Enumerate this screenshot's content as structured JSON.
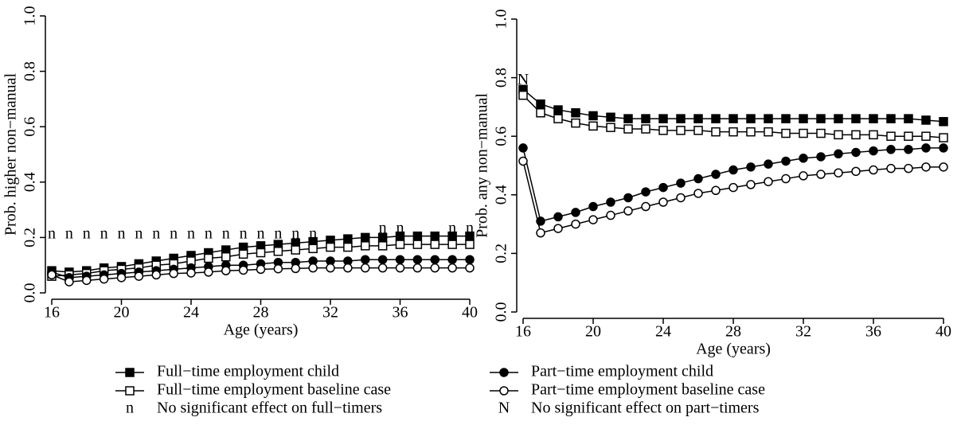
{
  "chart_data": [
    {
      "type": "line",
      "y_label": "Prob. higher non−manual",
      "x_label": "Age (years)",
      "x": [
        16,
        17,
        18,
        19,
        20,
        21,
        22,
        23,
        24,
        25,
        26,
        27,
        28,
        29,
        30,
        31,
        32,
        33,
        34,
        35,
        36,
        37,
        38,
        39,
        40
      ],
      "xlim": [
        16,
        40
      ],
      "xticks": [
        16,
        20,
        24,
        28,
        32,
        36,
        40
      ],
      "ylim": [
        0,
        1
      ],
      "yticks": [
        {
          "value": 0,
          "label": "0.0"
        },
        0.2,
        0.4,
        0.6,
        0.8,
        {
          "value": 1,
          "label": "1.0"
        }
      ],
      "series": [
        {
          "name": "Full−time employment child",
          "color": "#000000",
          "marker": "square",
          "filled": true,
          "values": [
            0.08,
            0.075,
            0.08,
            0.09,
            0.095,
            0.105,
            0.115,
            0.125,
            0.135,
            0.145,
            0.155,
            0.165,
            0.17,
            0.175,
            0.18,
            0.185,
            0.19,
            0.195,
            0.2,
            0.2,
            0.205,
            0.205,
            0.205,
            0.205,
            0.205
          ]
        },
        {
          "name": "Full−time employment baseline case",
          "color": "#000000",
          "marker": "square",
          "filled": false,
          "values": [
            0.06,
            0.065,
            0.07,
            0.08,
            0.085,
            0.09,
            0.1,
            0.105,
            0.115,
            0.125,
            0.13,
            0.14,
            0.145,
            0.15,
            0.155,
            0.16,
            0.165,
            0.165,
            0.17,
            0.17,
            0.175,
            0.175,
            0.175,
            0.175,
            0.175
          ]
        },
        {
          "name": "Part−time employment child",
          "color": "#000000",
          "marker": "circle",
          "filled": true,
          "values": [
            0.075,
            0.055,
            0.06,
            0.065,
            0.07,
            0.075,
            0.08,
            0.085,
            0.09,
            0.095,
            0.1,
            0.1,
            0.105,
            0.11,
            0.11,
            0.115,
            0.115,
            0.115,
            0.12,
            0.12,
            0.12,
            0.12,
            0.12,
            0.12,
            0.12
          ]
        },
        {
          "name": "Part−time employment baseline case",
          "color": "#000000",
          "marker": "circle",
          "filled": false,
          "values": [
            0.065,
            0.04,
            0.045,
            0.05,
            0.055,
            0.06,
            0.065,
            0.07,
            0.072,
            0.075,
            0.08,
            0.082,
            0.085,
            0.087,
            0.088,
            0.09,
            0.09,
            0.09,
            0.09,
            0.09,
            0.09,
            0.09,
            0.09,
            0.09,
            0.09
          ]
        }
      ],
      "annotations": [
        {
          "x": 16,
          "y": 0.21,
          "label": "n"
        },
        {
          "x": 17,
          "y": 0.21,
          "label": "n"
        },
        {
          "x": 18,
          "y": 0.21,
          "label": "n"
        },
        {
          "x": 19,
          "y": 0.21,
          "label": "n"
        },
        {
          "x": 20,
          "y": 0.21,
          "label": "n"
        },
        {
          "x": 21,
          "y": 0.21,
          "label": "n"
        },
        {
          "x": 22,
          "y": 0.21,
          "label": "n"
        },
        {
          "x": 23,
          "y": 0.21,
          "label": "n"
        },
        {
          "x": 24,
          "y": 0.21,
          "label": "n"
        },
        {
          "x": 25,
          "y": 0.21,
          "label": "n"
        },
        {
          "x": 26,
          "y": 0.21,
          "label": "n"
        },
        {
          "x": 27,
          "y": 0.21,
          "label": "n"
        },
        {
          "x": 28,
          "y": 0.21,
          "label": "n"
        },
        {
          "x": 29,
          "y": 0.21,
          "label": "n"
        },
        {
          "x": 30,
          "y": 0.21,
          "label": "n"
        },
        {
          "x": 31,
          "y": 0.21,
          "label": "n"
        },
        {
          "x": 35,
          "y": 0.23,
          "label": "n"
        },
        {
          "x": 36,
          "y": 0.23,
          "label": "n"
        },
        {
          "x": 39,
          "y": 0.23,
          "label": "n"
        },
        {
          "x": 40,
          "y": 0.23,
          "label": "n"
        }
      ]
    },
    {
      "type": "line",
      "y_label": "Prob. any non−manual",
      "x_label": "Age (years)",
      "x": [
        16,
        17,
        18,
        19,
        20,
        21,
        22,
        23,
        24,
        25,
        26,
        27,
        28,
        29,
        30,
        31,
        32,
        33,
        34,
        35,
        36,
        37,
        38,
        39,
        40
      ],
      "xlim": [
        16,
        40
      ],
      "xticks": [
        16,
        20,
        24,
        28,
        32,
        36,
        40
      ],
      "ylim": [
        0,
        1
      ],
      "yticks": [
        {
          "value": 0,
          "label": "0.0"
        },
        0.2,
        0.4,
        0.6,
        0.8,
        {
          "value": 1,
          "label": "1.0"
        }
      ],
      "series": [
        {
          "color": "#000000",
          "marker": "square",
          "filled": true,
          "values": [
            0.76,
            0.71,
            0.69,
            0.68,
            0.67,
            0.665,
            0.66,
            0.66,
            0.66,
            0.66,
            0.66,
            0.66,
            0.66,
            0.66,
            0.66,
            0.66,
            0.66,
            0.66,
            0.66,
            0.66,
            0.66,
            0.66,
            0.66,
            0.655,
            0.65
          ]
        },
        {
          "color": "#000000",
          "marker": "square",
          "filled": false,
          "values": [
            0.74,
            0.68,
            0.66,
            0.645,
            0.635,
            0.63,
            0.625,
            0.625,
            0.62,
            0.62,
            0.62,
            0.615,
            0.615,
            0.615,
            0.615,
            0.61,
            0.61,
            0.61,
            0.605,
            0.605,
            0.605,
            0.6,
            0.6,
            0.6,
            0.595
          ]
        },
        {
          "color": "#000000",
          "marker": "circle",
          "filled": true,
          "values": [
            0.56,
            0.31,
            0.325,
            0.34,
            0.36,
            0.375,
            0.39,
            0.41,
            0.425,
            0.44,
            0.455,
            0.47,
            0.485,
            0.495,
            0.505,
            0.515,
            0.525,
            0.53,
            0.54,
            0.545,
            0.55,
            0.555,
            0.555,
            0.56,
            0.56
          ]
        },
        {
          "color": "#000000",
          "marker": "circle",
          "filled": false,
          "values": [
            0.515,
            0.27,
            0.285,
            0.3,
            0.315,
            0.33,
            0.345,
            0.36,
            0.375,
            0.39,
            0.405,
            0.415,
            0.425,
            0.435,
            0.445,
            0.455,
            0.465,
            0.47,
            0.475,
            0.48,
            0.485,
            0.49,
            0.49,
            0.495,
            0.495
          ]
        }
      ],
      "annotations": [
        {
          "x": 16,
          "y": 0.79,
          "label": "N"
        }
      ]
    }
  ],
  "legend_notes": [
    {
      "symbol": "n",
      "label": "No significant effect on full−timers"
    },
    {
      "symbol": "N",
      "label": "No significant effect on part−timers"
    }
  ]
}
